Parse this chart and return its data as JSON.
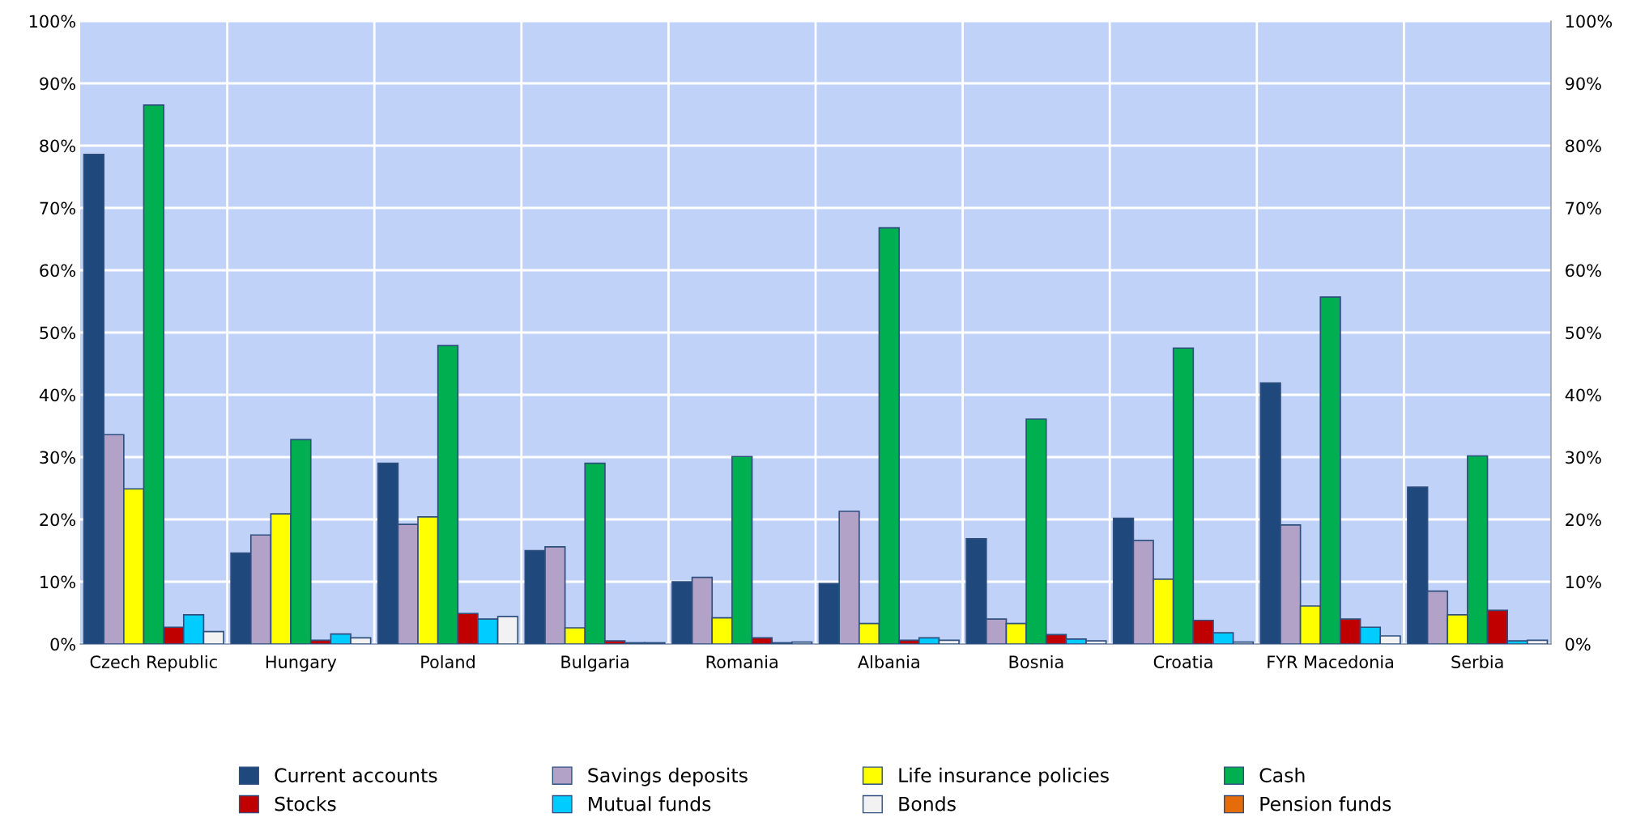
{
  "chart_data": {
    "type": "bar",
    "categories": [
      "Czech Republic",
      "Hungary",
      "Poland",
      "Bulgaria",
      "Romania",
      "Albania",
      "Bosnia",
      "Croatia",
      "FYR Macedonia",
      "Serbia"
    ],
    "series": [
      {
        "name": "Current accounts",
        "color": "#1f497d",
        "values": [
          78.6,
          14.6,
          29.0,
          15.0,
          10.0,
          9.7,
          16.9,
          20.2,
          41.9,
          25.2
        ]
      },
      {
        "name": "Savings deposits",
        "color": "#b3a2c7",
        "values": [
          33.6,
          17.5,
          19.2,
          15.6,
          10.7,
          21.3,
          4.0,
          16.6,
          19.1,
          8.5
        ]
      },
      {
        "name": "Life insurance policies",
        "color": "#ffff00",
        "values": [
          24.9,
          20.9,
          20.4,
          2.6,
          4.2,
          3.3,
          3.3,
          10.4,
          6.1,
          4.7
        ]
      },
      {
        "name": "Cash",
        "color": "#00b050",
        "values": [
          86.5,
          32.8,
          47.9,
          29.0,
          30.1,
          66.8,
          36.1,
          47.5,
          55.7,
          30.2
        ]
      },
      {
        "name": "Stocks",
        "color": "#c00000",
        "values": [
          2.7,
          0.6,
          4.9,
          0.5,
          1.0,
          0.6,
          1.5,
          3.8,
          4.0,
          5.4
        ]
      },
      {
        "name": "Mutual funds",
        "color": "#00ccff",
        "values": [
          4.7,
          1.6,
          4.0,
          0.2,
          0.2,
          1.0,
          0.8,
          1.8,
          2.7,
          0.5
        ]
      },
      {
        "name": "Bonds",
        "color": "#f2f2f2",
        "values": [
          2.0,
          1.0,
          4.4,
          0.2,
          0.3,
          0.6,
          0.5,
          0.3,
          1.3,
          0.6
        ]
      },
      {
        "name": "Pension funds",
        "color": "#e46c0a",
        "values": [
          null,
          null,
          null,
          null,
          null,
          null,
          null,
          null,
          null,
          null
        ]
      }
    ],
    "ylim": [
      0,
      100
    ],
    "yticks": [
      {
        "value": 0,
        "label": "0%"
      },
      {
        "value": 10,
        "label": "10%"
      },
      {
        "value": 20,
        "label": "20%"
      },
      {
        "value": 30,
        "label": "30%"
      },
      {
        "value": 40,
        "label": "40%"
      },
      {
        "value": 50,
        "label": "50%"
      },
      {
        "value": 60,
        "label": "60%"
      },
      {
        "value": 70,
        "label": "70%"
      },
      {
        "value": 80,
        "label": "80%"
      },
      {
        "value": 90,
        "label": "90%"
      },
      {
        "value": 100,
        "label": "100%"
      }
    ],
    "y2lim": [
      0,
      100
    ],
    "y2ticks": [
      {
        "value": 0,
        "label": "0%"
      },
      {
        "value": 10,
        "label": "10%"
      },
      {
        "value": 20,
        "label": "20%"
      },
      {
        "value": 30,
        "label": "30%"
      },
      {
        "value": 40,
        "label": "40%"
      },
      {
        "value": 50,
        "label": "50%"
      },
      {
        "value": 60,
        "label": "60%"
      },
      {
        "value": 70,
        "label": "70%"
      },
      {
        "value": 80,
        "label": "80%"
      },
      {
        "value": 90,
        "label": "90%"
      },
      {
        "value": 100,
        "label": "100%"
      }
    ],
    "grid": true,
    "legend": "bottom"
  }
}
